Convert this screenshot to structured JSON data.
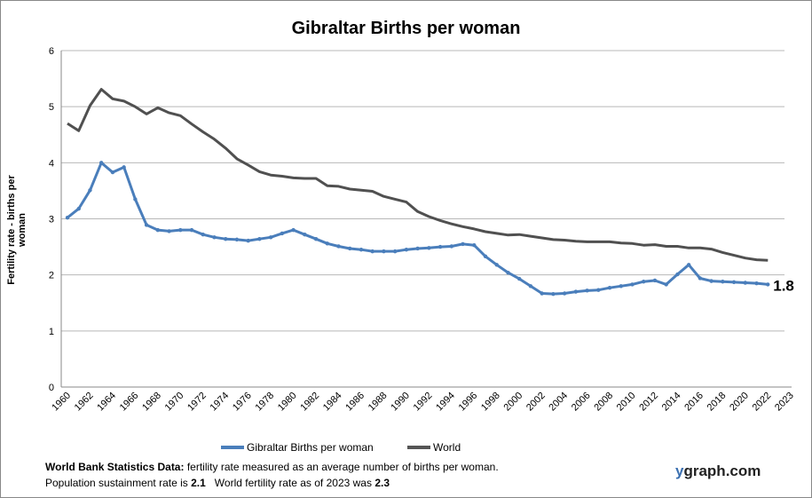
{
  "chart_data": {
    "type": "line",
    "title": "Gibraltar Births per woman",
    "ylabel": "Fertility rate  - births per woman",
    "xlabel": "",
    "ylim": [
      0,
      6
    ],
    "yticks": [
      "0",
      "1",
      "2",
      "3",
      "4",
      "5",
      "6"
    ],
    "xticks": [
      "1960",
      "1962",
      "1964",
      "1966",
      "1968",
      "1970",
      "1972",
      "1974",
      "1976",
      "1978",
      "1980",
      "1982",
      "1984",
      "1986",
      "1988",
      "1990",
      "1992",
      "1994",
      "1996",
      "1998",
      "2000",
      "2002",
      "2004",
      "2006",
      "2008",
      "2010",
      "2012",
      "2014",
      "2016",
      "2018",
      "2020",
      "2022",
      "2023"
    ],
    "grid": true,
    "legend": "bottom",
    "x_start": 1960,
    "series": [
      {
        "name": "Gibraltar Births per woman",
        "color": "#4a7ebb",
        "markers": true,
        "values": [
          3.02,
          3.18,
          3.51,
          4.0,
          3.83,
          3.92,
          3.35,
          2.89,
          2.8,
          2.78,
          2.8,
          2.8,
          2.72,
          2.67,
          2.64,
          2.63,
          2.61,
          2.64,
          2.67,
          2.74,
          2.8,
          2.72,
          2.64,
          2.56,
          2.51,
          2.47,
          2.45,
          2.42,
          2.42,
          2.42,
          2.45,
          2.47,
          2.48,
          2.5,
          2.51,
          2.55,
          2.53,
          2.33,
          2.18,
          2.04,
          1.93,
          1.8,
          1.67,
          1.66,
          1.67,
          1.7,
          1.72,
          1.73,
          1.77,
          1.8,
          1.83,
          1.88,
          1.9,
          1.83,
          2.01,
          2.18,
          1.94,
          1.89,
          1.88,
          1.87,
          1.86,
          1.85,
          1.83
        ]
      },
      {
        "name": "World",
        "color": "#505050",
        "markers": false,
        "values": [
          4.7,
          4.57,
          5.02,
          5.31,
          5.14,
          5.1,
          5.0,
          4.87,
          4.98,
          4.89,
          4.84,
          4.69,
          4.55,
          4.42,
          4.26,
          4.07,
          3.96,
          3.84,
          3.78,
          3.76,
          3.73,
          3.72,
          3.72,
          3.59,
          3.58,
          3.53,
          3.51,
          3.49,
          3.4,
          3.35,
          3.3,
          3.13,
          3.04,
          2.97,
          2.91,
          2.86,
          2.82,
          2.77,
          2.74,
          2.71,
          2.72,
          2.69,
          2.66,
          2.63,
          2.62,
          2.6,
          2.59,
          2.59,
          2.59,
          2.57,
          2.56,
          2.53,
          2.54,
          2.51,
          2.51,
          2.48,
          2.48,
          2.46,
          2.4,
          2.35,
          2.3,
          2.27,
          2.26
        ]
      }
    ],
    "end_label": "1.8"
  },
  "footer": {
    "line1_bold": "World Bank Statistics Data:",
    "line1": " fertility rate measured as an average number  of births per woman.",
    "line2a": "Population sustainment rate is ",
    "line2a_val": "2.1",
    "line2b": "   World fertility rate as of 2023 was ",
    "line2b_val": "2.3"
  },
  "brand": {
    "y": "y",
    "rest": "graph.com"
  }
}
